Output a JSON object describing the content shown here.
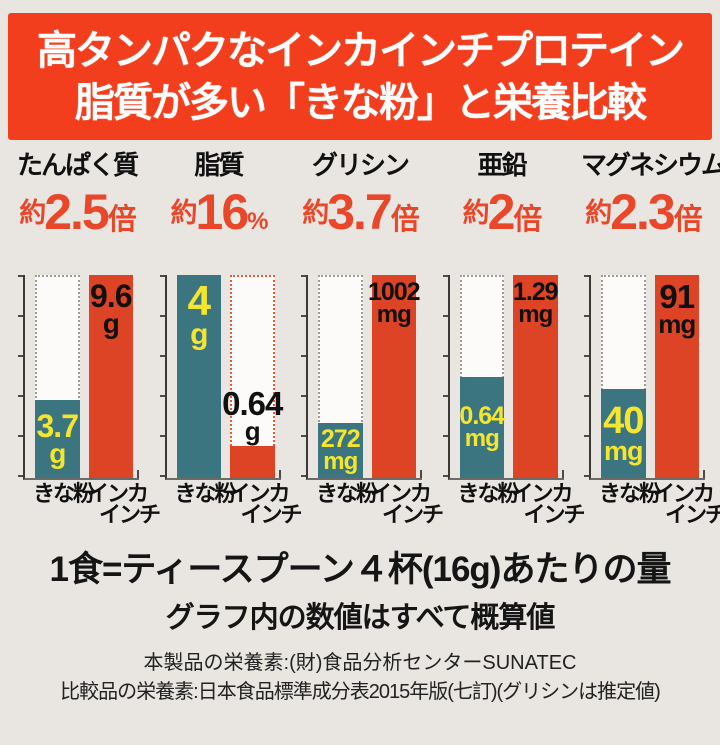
{
  "header": {
    "line1": "高タンパクなインカインチプロテイン",
    "line2": "脂質が多い「きな粉」と栄養比較",
    "bg_color": "#f23e1c",
    "text_color": "#ffffff"
  },
  "bar_labels": {
    "kinako": "きな粉",
    "inka_line1": "インカ",
    "inka_line2": "インチ"
  },
  "chart_data": [
    {
      "type": "bar",
      "title": "たんぱく質",
      "ratio_prefix": "約",
      "ratio_value": "2.5",
      "ratio_unit": "倍",
      "categories": [
        "きな粉",
        "インカインチ"
      ],
      "kinako": {
        "value": 3.7,
        "display": "3.7",
        "unit": "g"
      },
      "inka": {
        "value": 9.6,
        "display": "9.6",
        "unit": "g"
      }
    },
    {
      "type": "bar",
      "title": "脂質",
      "ratio_prefix": "約",
      "ratio_value": "16",
      "ratio_unit": "%",
      "categories": [
        "きな粉",
        "インカインチ"
      ],
      "kinako": {
        "value": 4,
        "display": "4",
        "unit": "g"
      },
      "inka": {
        "value": 0.64,
        "display": "0.64",
        "unit": "g"
      }
    },
    {
      "type": "bar",
      "title": "グリシン",
      "ratio_prefix": "約",
      "ratio_value": "3.7",
      "ratio_unit": "倍",
      "categories": [
        "きな粉",
        "インカインチ"
      ],
      "kinako": {
        "value": 272,
        "display": "272",
        "unit": "mg"
      },
      "inka": {
        "value": 1002,
        "display": "1002",
        "unit": "mg"
      }
    },
    {
      "type": "bar",
      "title": "亜鉛",
      "ratio_prefix": "約",
      "ratio_value": "2",
      "ratio_unit": "倍",
      "categories": [
        "きな粉",
        "インカインチ"
      ],
      "kinako": {
        "value": 0.64,
        "display": "0.64",
        "unit": "mg"
      },
      "inka": {
        "value": 1.29,
        "display": "1.29",
        "unit": "mg"
      }
    },
    {
      "type": "bar",
      "title": "マグネシウム",
      "ratio_prefix": "約",
      "ratio_value": "2.3",
      "ratio_unit": "倍",
      "categories": [
        "きな粉",
        "インカインチ"
      ],
      "kinako": {
        "value": 40,
        "display": "40",
        "unit": "mg"
      },
      "inka": {
        "value": 91,
        "display": "91",
        "unit": "mg"
      }
    }
  ],
  "notes": {
    "serving": "1食=ティースプーン４杯(16g)あたりの量",
    "approx": "グラフ内の数値はすべて概算値"
  },
  "footer": {
    "line1": "本製品の栄養素:(財)食品分析センターSUNATEC",
    "line2": "比較品の栄養素:日本食品標準成分表2015年版(七訂)(グリシンは推定値)"
  },
  "colors": {
    "background": "#e9e6e2",
    "banner_red": "#f23e1c",
    "inka_bar_red": "#dd4426",
    "kinako_bar_teal": "#3a7580",
    "stat_value_red": "#e8472a",
    "bar_label_yellow": "#f6e52e",
    "ghost_outline_gray": "#9d9c98",
    "ghost_outline_red": "#e8572f"
  }
}
